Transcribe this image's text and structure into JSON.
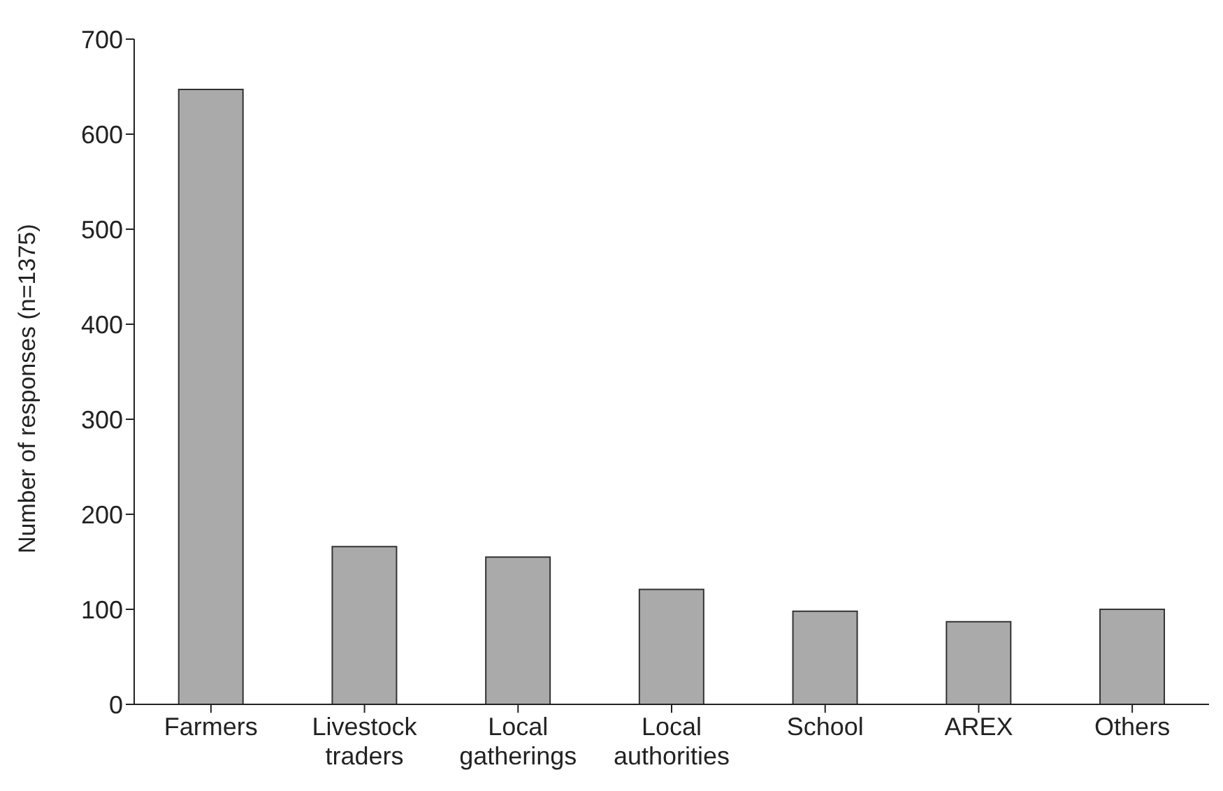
{
  "chart_data": {
    "type": "bar",
    "ylabel": "Number of responses (n=1375)",
    "categories": [
      "Farmers",
      "Livestock traders",
      "Local gatherings",
      "Local authorities",
      "School",
      "AREX",
      "Others"
    ],
    "values": [
      647,
      166,
      155,
      121,
      98,
      87,
      100
    ],
    "color": "#aaaaaa",
    "ylim": [
      0,
      700
    ],
    "yticks": [
      0,
      100,
      200,
      300,
      400,
      500,
      600,
      700
    ],
    "grid": false
  }
}
